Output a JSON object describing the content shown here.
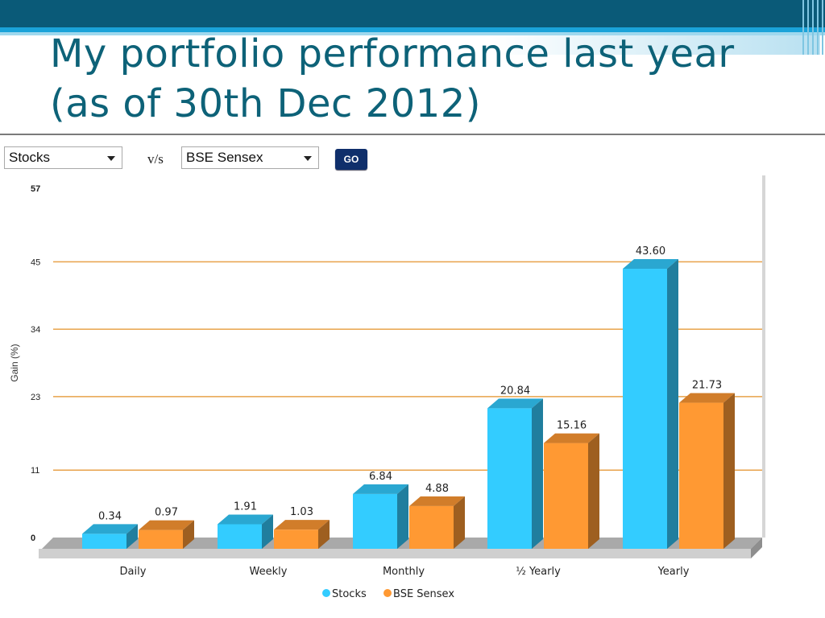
{
  "slide": {
    "title_line1": "My portfolio performance last year",
    "title_line2": "(as of 30th Dec 2012)"
  },
  "controls": {
    "select1_value": "Stocks",
    "vs_label": "v/s",
    "select2_value": "BSE Sensex",
    "go_label": "GO"
  },
  "colors": {
    "banner": "#0a5a78",
    "stocks": "#33ccff",
    "sensex": "#ff9933",
    "gridline": "#e8a24a"
  },
  "chart_data": {
    "type": "bar",
    "title": "",
    "xlabel": "",
    "ylabel": "Gain (%)",
    "ylim": [
      0,
      57
    ],
    "yticks": [
      0,
      11,
      23,
      34,
      45,
      57
    ],
    "grid": true,
    "legend_position": "bottom",
    "categories": [
      "Daily",
      "Weekly",
      "Monthly",
      "½ Yearly",
      "Yearly"
    ],
    "series": [
      {
        "name": "Stocks",
        "color": "#33ccff",
        "values": [
          0.34,
          1.91,
          6.84,
          20.84,
          43.6
        ],
        "labels": [
          "0.34",
          "1.91",
          "6.84",
          "20.84",
          "43.60"
        ]
      },
      {
        "name": "BSE Sensex",
        "color": "#ff9933",
        "values": [
          0.97,
          1.03,
          4.88,
          15.16,
          21.73
        ],
        "labels": [
          "0.97",
          "1.03",
          "4.88",
          "15.16",
          "21.73"
        ]
      }
    ]
  }
}
